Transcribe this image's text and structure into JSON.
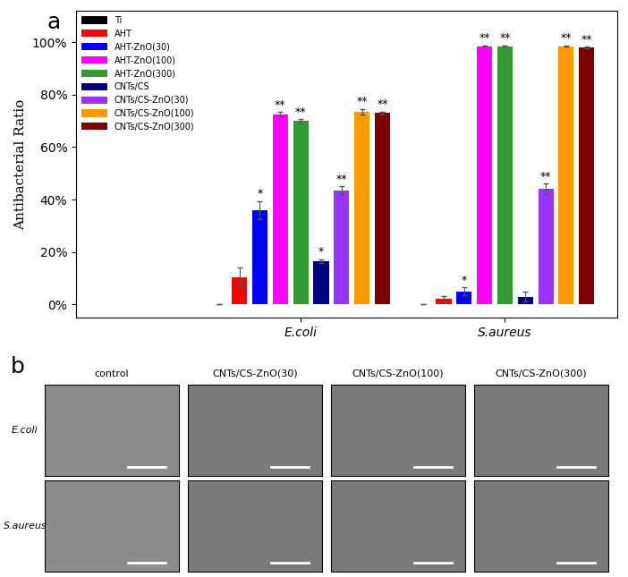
{
  "chart_data": {
    "type": "bar",
    "panel_label": "a",
    "y_label": "Antibacterial Ratio",
    "categories": [
      "E.coli",
      "S.aureus"
    ],
    "ylim": [
      -5,
      112
    ],
    "yticks": [
      {
        "value": 0,
        "label": "0%"
      },
      {
        "value": 20,
        "label": "20%"
      },
      {
        "value": 40,
        "label": "40%"
      },
      {
        "value": 60,
        "label": "60%"
      },
      {
        "value": 80,
        "label": "80%"
      },
      {
        "value": 100,
        "label": "100%"
      }
    ],
    "legend": "upper left",
    "series": [
      {
        "name": "Ti",
        "color": "#000000",
        "values": [
          0,
          0
        ],
        "errors": [
          0,
          0
        ],
        "significance": [
          null,
          null
        ]
      },
      {
        "name": "AHT",
        "color": "#ff0000",
        "values": [
          10.5,
          2
        ],
        "errors": [
          3.5,
          1.2
        ],
        "significance": [
          null,
          null
        ]
      },
      {
        "name": "AHT-ZnO(30)",
        "color": "#0000ff",
        "values": [
          36,
          5
        ],
        "errors": [
          3.5,
          1.5
        ],
        "significance": [
          "*",
          "*"
        ]
      },
      {
        "name": "AHT-ZnO(100)",
        "color": "#ff00ff",
        "values": [
          72.5,
          98.5
        ],
        "errors": [
          0.8,
          0.3
        ],
        "significance": [
          "**",
          "**"
        ]
      },
      {
        "name": "AHT-ZnO(300)",
        "color": "#339933",
        "values": [
          70,
          98.5
        ],
        "errors": [
          0.6,
          0.3
        ],
        "significance": [
          "**",
          "**"
        ]
      },
      {
        "name": "CNTs/CS",
        "color": "#000080",
        "values": [
          16.5,
          3
        ],
        "errors": [
          0.8,
          2
        ],
        "significance": [
          "*",
          null
        ]
      },
      {
        "name": "CNTs/CS-ZnO(30)",
        "color": "#9933ff",
        "values": [
          43.5,
          44
        ],
        "errors": [
          1.5,
          2
        ],
        "significance": [
          "**",
          "**"
        ]
      },
      {
        "name": "CNTs/CS-ZnO(100)",
        "color": "#ff9900",
        "values": [
          73.5,
          98.5
        ],
        "errors": [
          1,
          0.3
        ],
        "significance": [
          "**",
          "**"
        ]
      },
      {
        "name": "CNTs/CS-ZnO(300)",
        "color": "#800000",
        "values": [
          73,
          98
        ],
        "errors": [
          0.5,
          0.3
        ],
        "significance": [
          "**",
          "**"
        ]
      }
    ]
  },
  "image_panel": {
    "panel_label": "b",
    "columns": [
      "control",
      "CNTs/CS-ZnO(30)",
      "CNTs/CS-ZnO(100)",
      "CNTs/CS-ZnO(300)"
    ],
    "rows": [
      "E.coli",
      "S.aureus"
    ]
  }
}
